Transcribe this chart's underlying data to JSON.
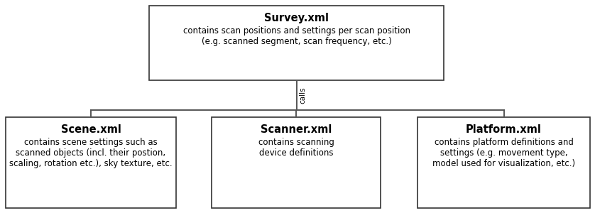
{
  "bg_color": "#ffffff",
  "box_edge_color": "#333333",
  "box_face_color": "#ffffff",
  "line_color": "#555555",
  "survey_title": "Survey.xml",
  "survey_body": "contains scan positions and settings per scan position\n(e.g. scanned segment, scan frequency, etc.)",
  "scene_title": "Scene.xml",
  "scene_body": "contains scene settings such as\nscanned objects (incl. their postion,\nscaling, rotation etc.), sky texture, etc.",
  "scanner_title": "Scanner.xml",
  "scanner_body": "contains scanning\ndevice definitions",
  "platform_title": "Platform.xml",
  "platform_body": "contains platform definitions and\nsettings (e.g. movement type,\nmodel used for visualization, etc.)",
  "calls_label": "calls",
  "title_fontsize": 10.5,
  "body_fontsize": 8.5,
  "calls_fontsize": 7.5,
  "fig_width": 8.38,
  "fig_height": 3.0,
  "dpi": 100
}
